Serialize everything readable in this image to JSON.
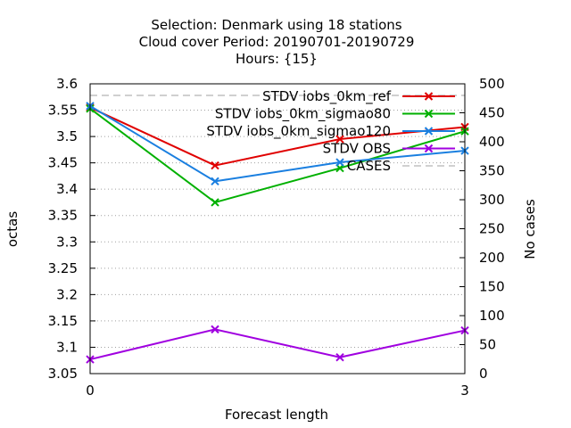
{
  "chart_data": {
    "type": "line",
    "title_lines": [
      "Selection: Denmark using    18 stations",
      "Cloud cover   Period: 20190701-20190729",
      "Hours: {15}"
    ],
    "xlabel": "Forecast length",
    "ylabel": "octas",
    "y2label": "No cases",
    "xlim": [
      0,
      3
    ],
    "ylim": [
      3.05,
      3.6
    ],
    "y2lim": [
      0,
      500
    ],
    "x_ticks": [
      0,
      3
    ],
    "y_ticks": [
      "3.05",
      "3.1",
      "3.15",
      "3.2",
      "3.25",
      "3.3",
      "3.35",
      "3.4",
      "3.45",
      "3.5",
      "3.55",
      "3.6"
    ],
    "y2_ticks": [
      "0",
      "50",
      "100",
      "150",
      "200",
      "250",
      "300",
      "350",
      "400",
      "450",
      "500"
    ],
    "grid": true,
    "legend_position": "top-right",
    "x": [
      0,
      1,
      2,
      3
    ],
    "series": [
      {
        "name": "STDV iobs_0km_ref",
        "axis": "y",
        "color": "#e00000",
        "values": [
          3.555,
          3.445,
          3.495,
          3.518
        ]
      },
      {
        "name": "STDV iobs_0km_sigmao80",
        "axis": "y",
        "color": "#00b000",
        "values": [
          3.553,
          3.375,
          3.44,
          3.51
        ]
      },
      {
        "name": "STDV iobs_0km_sigmao120",
        "axis": "y",
        "color": "#1a7fe0",
        "values": [
          3.558,
          3.415,
          3.451,
          3.473
        ]
      },
      {
        "name": "STDV OBS",
        "axis": "y",
        "color": "#a000e0",
        "values": [
          3.077,
          3.134,
          3.081,
          3.132
        ]
      },
      {
        "name": "CASES",
        "axis": "y2",
        "color": "#a0a0a0",
        "dashed": true,
        "values": [
          480,
          480,
          480,
          480
        ]
      }
    ]
  }
}
